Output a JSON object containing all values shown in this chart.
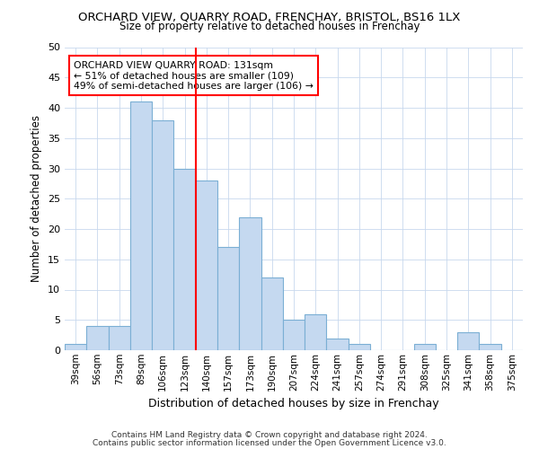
{
  "title": "ORCHARD VIEW, QUARRY ROAD, FRENCHAY, BRISTOL, BS16 1LX",
  "subtitle": "Size of property relative to detached houses in Frenchay",
  "xlabel": "Distribution of detached houses by size in Frenchay",
  "ylabel": "Number of detached properties",
  "categories": [
    "39sqm",
    "56sqm",
    "73sqm",
    "89sqm",
    "106sqm",
    "123sqm",
    "140sqm",
    "157sqm",
    "173sqm",
    "190sqm",
    "207sqm",
    "224sqm",
    "241sqm",
    "257sqm",
    "274sqm",
    "291sqm",
    "308sqm",
    "325sqm",
    "341sqm",
    "358sqm",
    "375sqm"
  ],
  "values": [
    1,
    4,
    4,
    41,
    38,
    30,
    28,
    17,
    22,
    12,
    5,
    6,
    2,
    1,
    0,
    0,
    1,
    0,
    3,
    1,
    0
  ],
  "bar_color": "#c5d9f0",
  "bar_edgecolor": "#7bafd4",
  "vline_x_index": 6,
  "vline_color": "red",
  "ylim": [
    0,
    50
  ],
  "yticks": [
    0,
    5,
    10,
    15,
    20,
    25,
    30,
    35,
    40,
    45,
    50
  ],
  "annotation_title": "ORCHARD VIEW QUARRY ROAD: 131sqm",
  "annotation_line1": "← 51% of detached houses are smaller (109)",
  "annotation_line2": "49% of semi-detached houses are larger (106) →",
  "footnote1": "Contains HM Land Registry data © Crown copyright and database right 2024.",
  "footnote2": "Contains public sector information licensed under the Open Government Licence v3.0.",
  "background_color": "#ffffff",
  "grid_color": "#c8d8ee"
}
